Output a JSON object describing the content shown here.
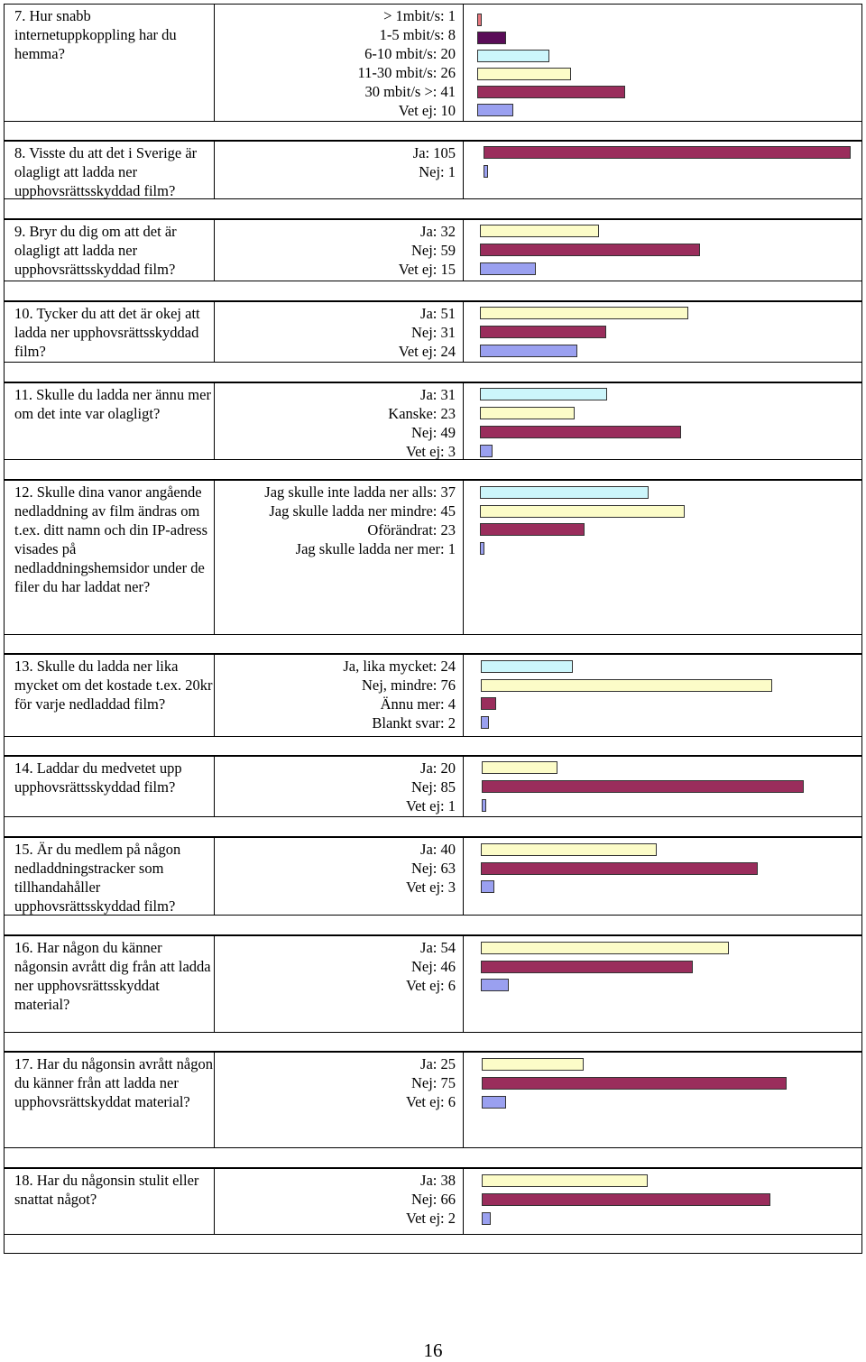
{
  "colors": {
    "pink": "#e8787f",
    "purple": "#5a0c58",
    "cyan": "#ccf6fb",
    "cream": "#fcfcc8",
    "maroon": "#9a2d5c",
    "blue": "#9aa0f0"
  },
  "questions": [
    {
      "text": "7. Hur snabb internetuppkoppling har du hemma?",
      "answers": [
        {
          "label": "> 1mbit/s: 1",
          "value": 1,
          "color": "pink"
        },
        {
          "label": "1-5 mbit/s: 8",
          "value": 8,
          "color": "purple"
        },
        {
          "label": "6-10 mbit/s: 20",
          "value": 20,
          "color": "cyan"
        },
        {
          "label": "11-30 mbit/s: 26",
          "value": 26,
          "color": "cream"
        },
        {
          "label": "30 mbit/s >: 41",
          "value": 41,
          "color": "maroon"
        },
        {
          "label": "Vet ej: 10",
          "value": 10,
          "color": "blue"
        }
      ]
    },
    {
      "text": "8. Visste du att det i Sverige är olagligt att ladda ner upphovsrättsskyddad film?",
      "answers": [
        {
          "label": "Ja: 105",
          "value": 105,
          "color": "maroon"
        },
        {
          "label": "Nej: 1",
          "value": 1,
          "color": "blue"
        }
      ]
    },
    {
      "text": "9. Bryr du dig om att det är olagligt att ladda ner upphovsrättsskyddad film?",
      "answers": [
        {
          "label": "Ja: 32",
          "value": 32,
          "color": "cream"
        },
        {
          "label": "Nej: 59",
          "value": 59,
          "color": "maroon"
        },
        {
          "label": "Vet ej: 15",
          "value": 15,
          "color": "blue"
        }
      ]
    },
    {
      "text": "10. Tycker du att det är okej att ladda ner upphovsrättsskyddad film?",
      "answers": [
        {
          "label": "Ja: 51",
          "value": 51,
          "color": "cream"
        },
        {
          "label": "Nej: 31",
          "value": 31,
          "color": "maroon"
        },
        {
          "label": "Vet ej: 24",
          "value": 24,
          "color": "blue"
        }
      ]
    },
    {
      "text": "11. Skulle du ladda ner ännu mer om det inte var olagligt?",
      "answers": [
        {
          "label": "Ja: 31",
          "value": 31,
          "color": "cyan"
        },
        {
          "label": "Kanske: 23",
          "value": 23,
          "color": "cream"
        },
        {
          "label": "Nej: 49",
          "value": 49,
          "color": "maroon"
        },
        {
          "label": "Vet ej: 3",
          "value": 3,
          "color": "blue"
        }
      ]
    },
    {
      "text": "12. Skulle dina vanor angående nedladdning av film ändras om t.ex. ditt namn och din IP-adress visades på nedladdningshemsidor under de filer du har laddat ner?",
      "answers": [
        {
          "label": "Jag skulle inte ladda ner alls: 37",
          "value": 37,
          "color": "cyan"
        },
        {
          "label": "Jag skulle ladda ner mindre: 45",
          "value": 45,
          "color": "cream"
        },
        {
          "label": "Oförändrat: 23",
          "value": 23,
          "color": "maroon"
        },
        {
          "label": "Jag skulle ladda ner mer: 1",
          "value": 1,
          "color": "blue"
        }
      ]
    },
    {
      "text": "13. Skulle du ladda ner lika mycket om det kostade t.ex. 20kr för varje nedladdad film?",
      "answers": [
        {
          "label": "Ja, lika mycket: 24",
          "value": 24,
          "color": "cyan"
        },
        {
          "label": "Nej, mindre: 76",
          "value": 76,
          "color": "cream"
        },
        {
          "label": "Ännu mer: 4",
          "value": 4,
          "color": "maroon"
        },
        {
          "label": "Blankt svar: 2",
          "value": 2,
          "color": "blue"
        }
      ]
    },
    {
      "text": "14. Laddar du medvetet upp upphovsrättsskyddad film?",
      "answers": [
        {
          "label": "Ja: 20",
          "value": 20,
          "color": "cream"
        },
        {
          "label": "Nej: 85",
          "value": 85,
          "color": "maroon"
        },
        {
          "label": "Vet ej: 1",
          "value": 1,
          "color": "blue"
        }
      ]
    },
    {
      "text": "15. Är du medlem på någon nedladdningstracker som tillhandahåller upphovsrättsskyddad film?",
      "answers": [
        {
          "label": "Ja: 40",
          "value": 40,
          "color": "cream"
        },
        {
          "label": "Nej: 63",
          "value": 63,
          "color": "maroon"
        },
        {
          "label": "Vet ej: 3",
          "value": 3,
          "color": "blue"
        }
      ]
    },
    {
      "text": "16. Har någon du känner någonsin avrått dig från att ladda ner upphovsrättsskyddat material?",
      "answers": [
        {
          "label": "Ja: 54",
          "value": 54,
          "color": "cream"
        },
        {
          "label": "Nej: 46",
          "value": 46,
          "color": "maroon"
        },
        {
          "label": "Vet ej: 6",
          "value": 6,
          "color": "blue"
        }
      ]
    },
    {
      "text": "17. Har du någonsin avrått någon du känner från att ladda ner upphovsrättskyddat material?",
      "answers": [
        {
          "label": "Ja: 25",
          "value": 25,
          "color": "cream"
        },
        {
          "label": "Nej: 75",
          "value": 75,
          "color": "maroon"
        },
        {
          "label": "Vet ej: 6",
          "value": 6,
          "color": "blue"
        }
      ]
    },
    {
      "text": "18. Har du någonsin stulit eller snattat något?",
      "answers": [
        {
          "label": "Ja: 38",
          "value": 38,
          "color": "cream"
        },
        {
          "label": "Nej: 66",
          "value": 66,
          "color": "maroon"
        },
        {
          "label": "Vet ej: 2",
          "value": 2,
          "color": "blue"
        }
      ]
    }
  ],
  "page_number": "16"
}
